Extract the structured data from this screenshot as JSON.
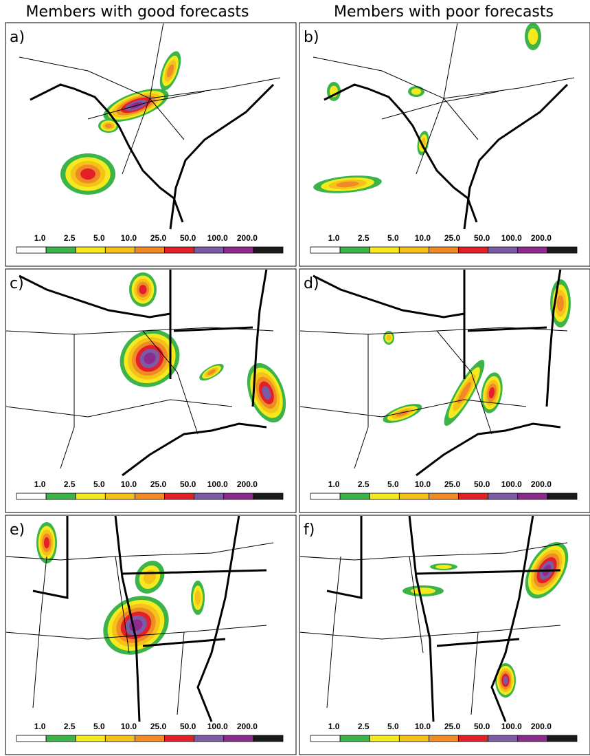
{
  "headers": [
    "Members with good forecasts",
    "Members with poor forecasts"
  ],
  "panels": [
    {
      "label": "a)"
    },
    {
      "label": "b)"
    },
    {
      "label": "c)"
    },
    {
      "label": "d)"
    },
    {
      "label": "e)"
    },
    {
      "label": "f)"
    }
  ],
  "colorbar": {
    "labels": [
      "1.0",
      "2.5",
      "5.0",
      "10.0",
      "25.0",
      "50.0",
      "100.0",
      "200.0"
    ],
    "colors": [
      "#ffffff",
      "#3cb44a",
      "#f5ea1e",
      "#f6c21a",
      "#f08a24",
      "#e3202a",
      "#7b5aa6",
      "#8e2a8e",
      "#1a1a1a"
    ]
  }
}
